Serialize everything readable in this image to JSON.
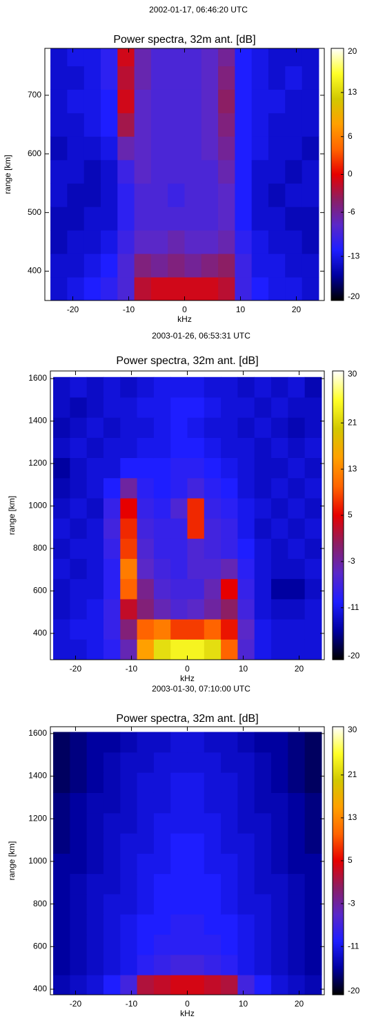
{
  "chart_data": [
    {
      "type": "heatmap",
      "subtitle": "2002-01-17, 06:46:20 UTC",
      "title": "Power spectra, 32m ant. [dB]",
      "xlabel": "kHz",
      "ylabel": "range [km]",
      "x": [
        -22.5,
        -19.5,
        -16.5,
        -13.5,
        -10.5,
        -7.5,
        -4.5,
        -1.5,
        1.5,
        4.5,
        7.5,
        10.5,
        13.5,
        16.5,
        19.5,
        22.5
      ],
      "y": [
        370,
        410,
        450,
        490,
        530,
        570,
        610,
        650,
        690,
        730,
        770
      ],
      "values": [
        [
          -14,
          -13,
          -12,
          -11,
          -9,
          -2,
          -1,
          -1,
          -1,
          -1,
          -2,
          -10,
          -12,
          -13,
          -13,
          -14
        ],
        [
          -14,
          -14,
          -13,
          -12,
          -9,
          -5,
          -6,
          -5,
          -6,
          -5,
          -4,
          -10,
          -13,
          -13,
          -14,
          -14
        ],
        [
          -15,
          -14,
          -14,
          -13,
          -10,
          -8,
          -8,
          -7,
          -8,
          -8,
          -7,
          -11,
          -13,
          -14,
          -14,
          -15
        ],
        [
          -15,
          -15,
          -14,
          -14,
          -11,
          -9,
          -9,
          -9,
          -9,
          -9,
          -8,
          -12,
          -14,
          -14,
          -15,
          -15
        ],
        [
          -14,
          -15,
          -15,
          -14,
          -11,
          -9,
          -9,
          -10,
          -9,
          -9,
          -8,
          -12,
          -14,
          -15,
          -14,
          -14
        ],
        [
          -14,
          -14,
          -15,
          -14,
          -10,
          -8,
          -9,
          -9,
          -9,
          -9,
          -7,
          -12,
          -14,
          -14,
          -15,
          -14
        ],
        [
          -15,
          -14,
          -14,
          -13,
          -7,
          -8,
          -9,
          -9,
          -9,
          -8,
          -6,
          -12,
          -13,
          -14,
          -14,
          -15
        ],
        [
          -14,
          -14,
          -13,
          -12,
          -3,
          -8,
          -9,
          -9,
          -9,
          -8,
          -5,
          -12,
          -13,
          -14,
          -14,
          -14
        ],
        [
          -14,
          -13,
          -13,
          -12,
          -1,
          -8,
          -9,
          -9,
          -9,
          -8,
          -4,
          -12,
          -13,
          -13,
          -14,
          -14
        ],
        [
          -14,
          -14,
          -13,
          -11,
          -2,
          -7,
          -9,
          -9,
          -9,
          -8,
          -5,
          -12,
          -13,
          -14,
          -13,
          -14
        ],
        [
          -14,
          -13,
          -13,
          -11,
          -1,
          -7,
          -9,
          -9,
          -9,
          -8,
          -6,
          -12,
          -13,
          -14,
          -14,
          -14
        ]
      ],
      "xlim": [
        -25,
        25
      ],
      "ylim": [
        350,
        780
      ],
      "xticks": [
        -20,
        -10,
        0,
        10,
        20
      ],
      "yticks": [
        400,
        500,
        600,
        700
      ],
      "zlim": [
        -20,
        20
      ],
      "zticks": [
        -20,
        -13,
        -6,
        0,
        6,
        13,
        20
      ],
      "colorscale": [
        "#000000",
        "#0000a0",
        "#1e1eff",
        "#5a28c8",
        "#8c1e64",
        "#e60000",
        "#ff6400",
        "#ffa000",
        "#d2c800",
        "#ffff28",
        "#ffffff"
      ]
    },
    {
      "type": "heatmap",
      "subtitle": "2003-01-26, 06:53:31 UTC",
      "title": "Power spectra, 32m ant. [dB]",
      "xlabel": "kHz",
      "ylabel": "range [km]",
      "x": [
        -22.5,
        -19.5,
        -16.5,
        -13.5,
        -10.5,
        -7.5,
        -4.5,
        -1.5,
        1.5,
        4.5,
        7.5,
        10.5,
        13.5,
        16.5,
        19.5,
        22.5
      ],
      "y": [
        325,
        420,
        515,
        610,
        705,
        800,
        895,
        990,
        1085,
        1180,
        1275,
        1370,
        1465,
        1560
      ],
      "values": [
        [
          -12,
          -12,
          -11,
          -9,
          -4,
          15,
          22,
          24,
          24,
          22,
          10,
          -6,
          -11,
          -12,
          -12,
          -12
        ],
        [
          -12,
          -11,
          -11,
          -8,
          -1,
          10,
          12,
          8,
          8,
          10,
          6,
          -5,
          -11,
          -12,
          -12,
          -12
        ],
        [
          -13,
          -12,
          -11,
          -8,
          3,
          -1,
          -4,
          -6,
          -5,
          -3,
          0,
          -7,
          -12,
          -13,
          -13,
          -12
        ],
        [
          -13,
          -12,
          -12,
          -9,
          10,
          -2,
          -6,
          -7,
          -7,
          -4,
          5,
          -8,
          -12,
          -15,
          -15,
          -13
        ],
        [
          -12,
          -13,
          -12,
          -9,
          12,
          -5,
          -7,
          -8,
          -6,
          -6,
          -4,
          -9,
          -12,
          -13,
          -13,
          -12
        ],
        [
          -13,
          -12,
          -12,
          -8,
          8,
          -6,
          -8,
          -8,
          -6,
          -7,
          -8,
          -10,
          -12,
          -13,
          -12,
          -13
        ],
        [
          -12,
          -13,
          -12,
          -7,
          7,
          -7,
          -8,
          -8,
          7,
          -7,
          -8,
          -11,
          -13,
          -12,
          -13,
          -12
        ],
        [
          -13,
          -12,
          -13,
          -8,
          5,
          -8,
          -9,
          -6,
          7,
          -8,
          -9,
          -11,
          -12,
          -13,
          -12,
          -13
        ],
        [
          -14,
          -13,
          -12,
          -10,
          -3,
          -9,
          -10,
          -9,
          -7,
          -9,
          -10,
          -12,
          -13,
          -12,
          -13,
          -12
        ],
        [
          -15,
          -13,
          -12,
          -12,
          -10,
          -10,
          -10,
          -9,
          -9,
          -10,
          -11,
          -12,
          -13,
          -13,
          -12,
          -13
        ],
        [
          -13,
          -12,
          -13,
          -12,
          -12,
          -11,
          -11,
          -10,
          -10,
          -11,
          -12,
          -12,
          -13,
          -12,
          -13,
          -12
        ],
        [
          -14,
          -13,
          -12,
          -13,
          -12,
          -12,
          -11,
          -10,
          -11,
          -12,
          -12,
          -13,
          -12,
          -13,
          -14,
          -13
        ],
        [
          -13,
          -14,
          -13,
          -12,
          -12,
          -11,
          -11,
          -10,
          -10,
          -11,
          -12,
          -12,
          -13,
          -12,
          -13,
          -13
        ],
        [
          -13,
          -12,
          -13,
          -12,
          -13,
          -12,
          -11,
          -11,
          -11,
          -12,
          -12,
          -13,
          -12,
          -13,
          -12,
          -14
        ]
      ],
      "xlim": [
        -24.5,
        24.5
      ],
      "ylim": [
        276,
        1636
      ],
      "xticks": [
        -20,
        -10,
        0,
        10,
        20
      ],
      "yticks": [
        400,
        600,
        800,
        1000,
        1200,
        1400,
        1600
      ],
      "zlim": [
        -20,
        30
      ],
      "zticks": [
        -20,
        -11,
        -3,
        5,
        13,
        21,
        30
      ],
      "colorscale": [
        "#000000",
        "#0000a0",
        "#1e1eff",
        "#5a28c8",
        "#8c1e64",
        "#e60000",
        "#ff6400",
        "#ffa000",
        "#d2c800",
        "#ffff28",
        "#ffffff"
      ]
    },
    {
      "type": "heatmap",
      "subtitle": "2003-01-30, 07:10:00 UTC",
      "title": "Power spectra, 32m ant. [dB]",
      "xlabel": "kHz",
      "ylabel": "range [km]",
      "x": [
        -22.5,
        -19.5,
        -16.5,
        -13.5,
        -10.5,
        -7.5,
        -4.5,
        -1.5,
        1.5,
        4.5,
        7.5,
        10.5,
        13.5,
        16.5,
        19.5,
        22.5
      ],
      "y": [
        325,
        420,
        515,
        610,
        705,
        800,
        895,
        990,
        1085,
        1180,
        1275,
        1370,
        1465,
        1560
      ],
      "values": [
        [
          -14,
          -13,
          -12,
          -10,
          -6,
          12,
          20,
          22,
          22,
          20,
          12,
          -6,
          -10,
          -12,
          -13,
          -14
        ],
        [
          -14,
          -13,
          -12,
          -10,
          -7,
          2,
          3,
          4,
          4,
          3,
          2,
          -7,
          -10,
          -12,
          -13,
          -14
        ],
        [
          -15,
          -14,
          -13,
          -12,
          -11,
          -9,
          -8,
          -7,
          -7,
          -8,
          -9,
          -11,
          -12,
          -13,
          -14,
          -15
        ],
        [
          -15,
          -14,
          -13,
          -12,
          -11,
          -10,
          -9,
          -9,
          -9,
          -9,
          -10,
          -11,
          -12,
          -13,
          -14,
          -15
        ],
        [
          -15,
          -14,
          -13,
          -12,
          -11,
          -10,
          -10,
          -9,
          -9,
          -10,
          -10,
          -11,
          -12,
          -13,
          -14,
          -15
        ],
        [
          -15,
          -14,
          -13,
          -12,
          -12,
          -11,
          -10,
          -10,
          -10,
          -10,
          -11,
          -12,
          -12,
          -13,
          -14,
          -15
        ],
        [
          -15,
          -14,
          -13,
          -13,
          -12,
          -11,
          -10,
          -10,
          -10,
          -10,
          -11,
          -12,
          -13,
          -13,
          -14,
          -15
        ],
        [
          -15,
          -15,
          -14,
          -13,
          -12,
          -11,
          -11,
          -10,
          -10,
          -11,
          -11,
          -12,
          -13,
          -14,
          -15,
          -15
        ],
        [
          -16,
          -15,
          -14,
          -13,
          -12,
          -12,
          -11,
          -10,
          -10,
          -11,
          -12,
          -12,
          -13,
          -14,
          -15,
          -16
        ],
        [
          -16,
          -15,
          -14,
          -13,
          -13,
          -12,
          -11,
          -11,
          -11,
          -11,
          -12,
          -13,
          -13,
          -14,
          -15,
          -16
        ],
        [
          -16,
          -15,
          -14,
          -14,
          -13,
          -12,
          -12,
          -11,
          -11,
          -12,
          -12,
          -13,
          -14,
          -14,
          -15,
          -16
        ],
        [
          -17,
          -16,
          -15,
          -14,
          -13,
          -12,
          -12,
          -11,
          -11,
          -12,
          -12,
          -13,
          -14,
          -15,
          -16,
          -17
        ],
        [
          -17,
          -16,
          -15,
          -14,
          -13,
          -13,
          -12,
          -12,
          -12,
          -12,
          -13,
          -13,
          -14,
          -15,
          -16,
          -17
        ],
        [
          -17,
          -16,
          -15,
          -15,
          -14,
          -13,
          -13,
          -12,
          -12,
          -13,
          -13,
          -14,
          -15,
          -15,
          -16,
          -17
        ]
      ],
      "xlim": [
        -24.5,
        24.5
      ],
      "ylim": [
        374,
        1632
      ],
      "xticks": [
        -20,
        -10,
        0,
        10,
        20
      ],
      "yticks": [
        400,
        600,
        800,
        1000,
        1200,
        1400,
        1600
      ],
      "zlim": [
        -20,
        30
      ],
      "zticks": [
        -20,
        -11,
        -3,
        5,
        13,
        21,
        30
      ],
      "colorscale": [
        "#000000",
        "#0000a0",
        "#1e1eff",
        "#5a28c8",
        "#8c1e64",
        "#e60000",
        "#ff6400",
        "#ffa000",
        "#d2c800",
        "#ffff28",
        "#ffffff"
      ]
    }
  ]
}
